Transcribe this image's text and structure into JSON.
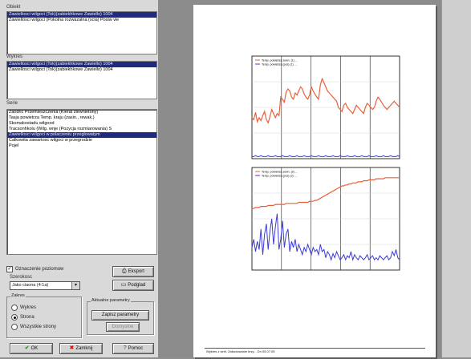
{
  "left_panel": {
    "list1_label": "Obiekt",
    "list1_items": [
      {
        "text": "Zawiellosci wilgoci (Tok)(zabiekhkowe Zawiello) 1004",
        "selected": true
      },
      {
        "text": "Zawiellosci wilgoci (Pokolna rozwazalna (scia) Posiw vie",
        "selected": false
      }
    ],
    "list2_label": "Wykres",
    "list2_items": [
      {
        "text": "Zawiellosci wilgoci (Tok)(zabiekhkowe Zawiello) 1004",
        "selected": true
      },
      {
        "text": "Zawiellosci wilgoci (Tok)(zabiekhkowe Zawiello) 1004",
        "selected": false
      }
    ],
    "list3_label": "Serie",
    "list3_items": [
      {
        "text": "Zaodnc Przemieszczenia (Kierat zlewnietony)",
        "selected": false
      },
      {
        "text": "Tasja powietrza Temp. kraju (zasin., rewak.)",
        "selected": false
      },
      {
        "text": "Skomakostadu wilgood",
        "selected": false
      },
      {
        "text": "Tracsonhkolu (Wilg. wnje (Pozycja rozmiarowania) S",
        "selected": false
      },
      {
        "text": "Zawiellosci wilgoci w polaczeniu przeglowatym",
        "selected": true
      },
      {
        "text": "Calkowita zawartosc wilgoci w przegrodzie",
        "selected": false
      },
      {
        "text": "Pojel",
        "selected": false
      }
    ],
    "checkbox_label": "Oznaczenie poziomow",
    "checkbox_checked": "✓",
    "sublabel": "Szerokosc",
    "select_value": "Jako ciaona (4:1a)",
    "btn_export": "Eksport",
    "btn_preview": "Podglad",
    "zakres_title": "Zakres",
    "radios": [
      {
        "label": "Wykres",
        "on": false
      },
      {
        "label": "Strona",
        "on": true
      },
      {
        "label": "Wszystkie strony",
        "on": false
      }
    ],
    "params_title": "Aktualne parametry",
    "btn_save_params": "Zapisz parametry",
    "btn_default": "Domyslne",
    "btn_ok": "OK",
    "btn_cancel": "Zamknij",
    "btn_help": "Pomoc",
    "icon_ok": "check-icon",
    "icon_cancel": "close-icon",
    "icon_help": "help-icon",
    "icon_export": "printer-icon",
    "icon_preview": "preview-icon"
  },
  "preview": {
    "footer_text": "Wykres z serii. Zabudowanie krzy... Dn 05.07.05"
  },
  "chart_data": [
    {
      "type": "line",
      "legend": [
        "Temp. powietrza zewn. (1) ...",
        "Temp. powietrza (poz) (1) ..."
      ],
      "legend_colors": [
        "#e8603a",
        "#3b3bd8"
      ],
      "xlim": [
        0,
        900
      ],
      "ylim": [
        0,
        100
      ],
      "series": [
        {
          "values": [
            40,
            38,
            45,
            36,
            40,
            37,
            42,
            46,
            38,
            35,
            41,
            48,
            44,
            40,
            44,
            42,
            60,
            58,
            55,
            65,
            68,
            66,
            60,
            58,
            64,
            62,
            66,
            70,
            68,
            63,
            60,
            58,
            62,
            70,
            66,
            63,
            60,
            58,
            72,
            78,
            74,
            70,
            66,
            64,
            62,
            60,
            58,
            56,
            50,
            48,
            46,
            52,
            54,
            50,
            48,
            46,
            44,
            48,
            52,
            50,
            48,
            46,
            44,
            50,
            54,
            52,
            50,
            48,
            50,
            56,
            60,
            58,
            55,
            52,
            50,
            48,
            50,
            52,
            54,
            56,
            54,
            52,
            50
          ]
        },
        {
          "values": [
            2,
            2,
            3,
            2,
            2,
            3,
            2,
            2,
            2,
            3,
            2,
            2,
            2,
            3,
            2,
            2,
            2,
            3,
            2,
            2,
            2,
            3,
            2,
            2,
            2,
            3,
            2,
            2,
            2,
            3,
            2,
            2,
            2,
            3,
            2,
            2,
            2,
            3,
            2,
            2,
            2,
            3,
            2,
            2,
            2,
            3,
            2,
            2,
            2,
            3,
            2,
            2,
            2,
            3,
            2,
            2,
            2,
            3,
            2,
            2,
            2,
            3,
            2,
            2,
            2,
            3,
            2,
            2,
            2,
            3,
            2,
            2,
            2,
            3,
            2,
            2,
            2,
            3,
            2,
            2,
            2,
            3,
            2
          ]
        }
      ]
    },
    {
      "type": "line",
      "legend": [
        "Temp. powietrza zewn. (2) ...",
        "Temp. powietrza (poz) (2) ..."
      ],
      "legend_colors": [
        "#e8603a",
        "#3b3bd8"
      ],
      "xlim": [
        0,
        900
      ],
      "ylim": [
        0,
        100
      ],
      "series": [
        {
          "values": [
            60,
            60,
            61,
            61,
            61,
            62,
            62,
            62,
            62,
            63,
            63,
            63,
            63,
            64,
            64,
            64,
            64,
            64,
            64,
            65,
            65,
            65,
            65,
            65,
            65,
            65,
            66,
            66,
            66,
            66,
            66,
            66,
            67,
            67,
            67,
            68,
            68,
            69,
            70,
            71,
            72,
            73,
            74,
            75,
            76,
            77,
            78,
            79,
            80,
            81,
            82,
            82,
            83,
            83,
            84,
            84,
            85,
            85,
            85,
            86,
            86,
            86,
            87,
            87,
            87,
            88,
            88,
            88,
            88,
            89,
            89,
            89,
            89,
            89,
            90,
            90,
            90,
            90,
            90,
            90,
            90,
            90,
            90
          ]
        },
        {
          "values": [
            22,
            30,
            18,
            28,
            20,
            40,
            15,
            35,
            45,
            20,
            38,
            50,
            25,
            42,
            55,
            20,
            30,
            48,
            22,
            35,
            40,
            18,
            28,
            22,
            30,
            18,
            25,
            20,
            15,
            22,
            18,
            25,
            20,
            15,
            22,
            18,
            20,
            15,
            25,
            18,
            20,
            12,
            18,
            15,
            10,
            16,
            12,
            18,
            14,
            10,
            12,
            15,
            10,
            14,
            12,
            18,
            10,
            15,
            12,
            10,
            14,
            12,
            10,
            12,
            15,
            10,
            12,
            14,
            10,
            12,
            10,
            14,
            12,
            10,
            12,
            14,
            10,
            12,
            18,
            14,
            20,
            12,
            10
          ]
        }
      ]
    }
  ]
}
